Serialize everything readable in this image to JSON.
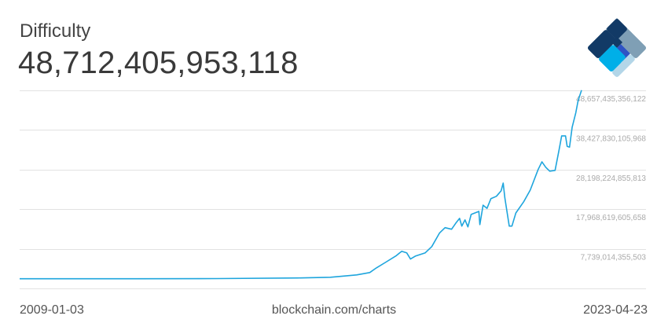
{
  "header": {
    "title": "Difficulty",
    "current_value": "48,712,405,953,118"
  },
  "footer": {
    "start_date": "2009-01-03",
    "source": "blockchain.com/charts",
    "end_date": "2023-04-23"
  },
  "colors": {
    "line": "#1ea5dd",
    "grid": "#e2e2e2",
    "tick_text": "#aaaaaa",
    "logo": [
      "#7f9fb5",
      "#123a66",
      "#2e53c4",
      "#00afe8",
      "#b3d6e8"
    ]
  },
  "icons": {
    "logo": "blockchain-logo"
  },
  "chart_data": {
    "type": "line",
    "title": "Difficulty",
    "xlabel": "",
    "ylabel": "",
    "xlim": [
      "2009-01-03",
      "2023-04-23"
    ],
    "ylim": [
      -2490591894652,
      48657435356122
    ],
    "y_ticks": [
      {
        "value": 48657435356122,
        "label": "48,657,435,356,122"
      },
      {
        "value": 38427830105968,
        "label": "38,427,830,105,968"
      },
      {
        "value": 28198224855813,
        "label": "28,198,224,855,813"
      },
      {
        "value": 17968619605658,
        "label": "17,968,619,605,658"
      },
      {
        "value": 7739014355503,
        "label": "7,739,014,355,503"
      }
    ],
    "grid": true,
    "y_unit_note": "",
    "series": [
      {
        "points": [
          [
            "2009-01-03",
            0
          ],
          [
            "2012-01-01",
            0.01
          ],
          [
            "2014-01-01",
            0.05
          ],
          [
            "2016-02-01",
            0.2
          ],
          [
            "2016-12-01",
            0.4
          ],
          [
            "2017-08-01",
            1.0
          ],
          [
            "2017-12-01",
            1.6
          ],
          [
            "2018-02-01",
            2.8
          ],
          [
            "2018-05-01",
            4.3
          ],
          [
            "2018-08-01",
            5.9
          ],
          [
            "2018-09-25",
            7.1
          ],
          [
            "2018-11-10",
            6.7
          ],
          [
            "2018-12-15",
            5.1
          ],
          [
            "2019-02-01",
            5.9
          ],
          [
            "2019-05-01",
            6.7
          ],
          [
            "2019-07-01",
            8.3
          ],
          [
            "2019-09-10",
            11.8
          ],
          [
            "2019-11-01",
            13.2
          ],
          [
            "2020-01-01",
            12.8
          ],
          [
            "2020-02-10",
            14.4
          ],
          [
            "2020-03-15",
            15.6
          ],
          [
            "2020-04-05",
            13.6
          ],
          [
            "2020-05-05",
            15.2
          ],
          [
            "2020-06-01",
            13.4
          ],
          [
            "2020-07-01",
            16.6
          ],
          [
            "2020-09-10",
            17.4
          ],
          [
            "2020-09-20",
            14.0
          ],
          [
            "2020-10-20",
            19.0
          ],
          [
            "2020-11-25",
            18.2
          ],
          [
            "2021-01-01",
            20.7
          ],
          [
            "2021-02-20",
            21.3
          ],
          [
            "2021-04-05",
            22.7
          ],
          [
            "2021-04-25",
            24.7
          ],
          [
            "2021-05-10",
            20.9
          ],
          [
            "2021-06-20",
            13.6
          ],
          [
            "2021-07-15",
            13.6
          ],
          [
            "2021-08-20",
            17.0
          ],
          [
            "2021-11-01",
            19.9
          ],
          [
            "2022-01-01",
            22.9
          ],
          [
            "2022-03-15",
            28.2
          ],
          [
            "2022-04-20",
            30.2
          ],
          [
            "2022-05-25",
            28.8
          ],
          [
            "2022-07-01",
            27.8
          ],
          [
            "2022-08-20",
            28.0
          ],
          [
            "2022-09-25",
            33.2
          ],
          [
            "2022-10-20",
            36.9
          ],
          [
            "2022-11-25",
            36.9
          ],
          [
            "2022-12-10",
            34.2
          ],
          [
            "2023-01-01",
            34.0
          ],
          [
            "2023-01-25",
            39.1
          ],
          [
            "2023-03-01",
            42.9
          ],
          [
            "2023-03-22",
            46.0
          ],
          [
            "2023-04-23",
            48.7
          ]
        ],
        "value_scale": 1000000000000.0
      }
    ]
  }
}
